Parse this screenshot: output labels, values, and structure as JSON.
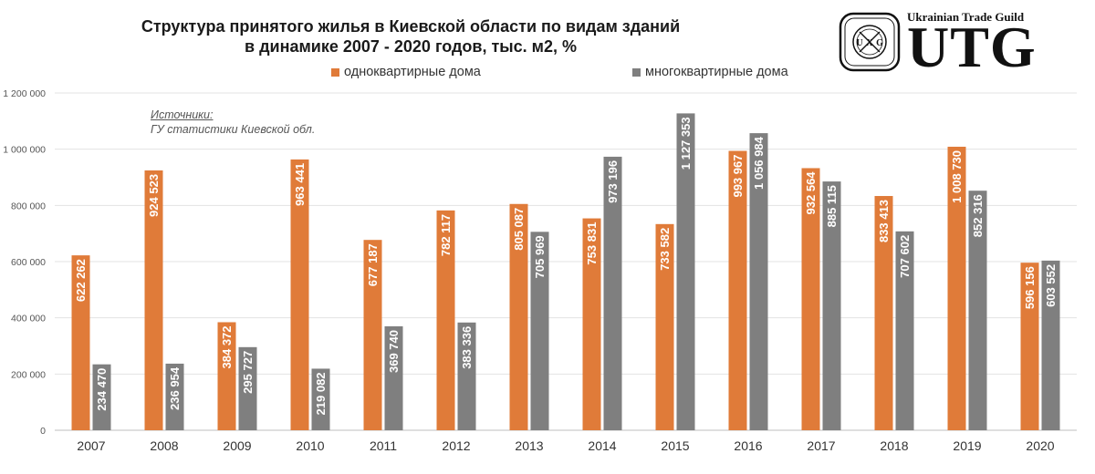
{
  "chart_data": {
    "type": "bar",
    "title": [
      "Структура принятого жилья в Киевской области по видам зданий",
      "в динамике 2007 - 2020 годов, тыс. м2, %"
    ],
    "categories": [
      "2007",
      "2008",
      "2009",
      "2010",
      "2011",
      "2012",
      "2013",
      "2014",
      "2015",
      "2016",
      "2017",
      "2018",
      "2019",
      "2020"
    ],
    "series": [
      {
        "name": "одноквартирные дома",
        "color": "#E07B39",
        "values": [
          622262,
          924523,
          384372,
          963441,
          677187,
          782117,
          805087,
          753831,
          733582,
          993967,
          932564,
          833413,
          1008730,
          596156
        ],
        "labels": [
          "622 262",
          "924 523",
          "384 372",
          "963 441",
          "677 187",
          "782 117",
          "805 087",
          "753 831",
          "733 582",
          "993 967",
          "932 564",
          "833 413",
          "1 008 730",
          "596 156"
        ]
      },
      {
        "name": "многоквартирные дома",
        "color": "#7F7F7F",
        "values": [
          234470,
          236954,
          295727,
          219082,
          369740,
          383336,
          705969,
          973196,
          1127353,
          1056984,
          885115,
          707602,
          852316,
          603552
        ],
        "labels": [
          "234 470",
          "236 954",
          "295 727",
          "219 082",
          "369 740",
          "383 336",
          "705 969",
          "973 196",
          "1 127 353",
          "1 056 984",
          "885 115",
          "707 602",
          "852 316",
          "603 552"
        ]
      }
    ],
    "yticks": [
      0,
      200000,
      400000,
      600000,
      800000,
      1000000,
      1200000
    ],
    "ytick_labels": [
      "0",
      "200 000",
      "400 000",
      "600 000",
      "800 000",
      "1 000 000",
      "1 200 000"
    ],
    "ylim": [
      0,
      1200000
    ],
    "grid": true,
    "legend": "top",
    "label_color": "#ffffff"
  },
  "sources": {
    "label": "Источники:",
    "text": "ГУ статистики Киевской обл."
  },
  "logo": {
    "brand": "Ukrainian Trade Guild",
    "text": "UTG",
    "emblem_letters": [
      "U",
      "X",
      "G"
    ]
  }
}
